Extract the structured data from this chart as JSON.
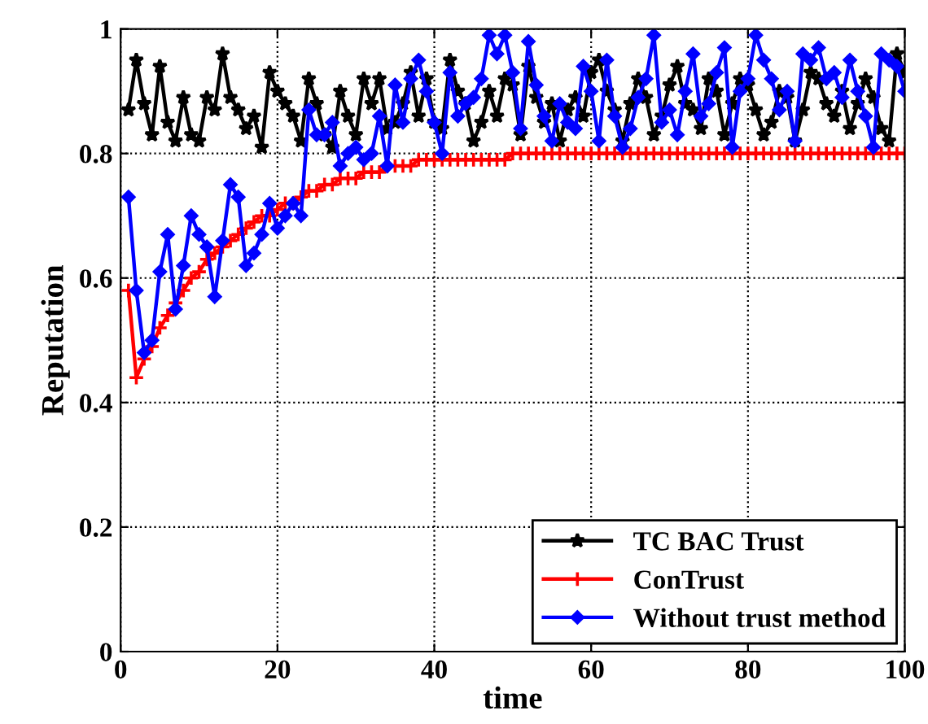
{
  "chart_data": {
    "type": "line",
    "xlabel": "time",
    "ylabel": "Reputation",
    "xlim": [
      0,
      100
    ],
    "ylim": [
      0,
      1
    ],
    "xticks": [
      0,
      20,
      40,
      60,
      80,
      100
    ],
    "yticks": [
      0,
      0.2,
      0.4,
      0.6,
      0.8,
      1
    ],
    "grid": true,
    "legend": "bottom right",
    "line_style": "solid",
    "x": [
      1,
      2,
      3,
      4,
      5,
      6,
      7,
      8,
      9,
      10,
      11,
      12,
      13,
      14,
      15,
      16,
      17,
      18,
      19,
      20,
      21,
      22,
      23,
      24,
      25,
      26,
      27,
      28,
      29,
      30,
      31,
      32,
      33,
      34,
      35,
      36,
      37,
      38,
      39,
      40,
      41,
      42,
      43,
      44,
      45,
      46,
      47,
      48,
      49,
      50,
      51,
      52,
      53,
      54,
      55,
      56,
      57,
      58,
      59,
      60,
      61,
      62,
      63,
      64,
      65,
      66,
      67,
      68,
      69,
      70,
      71,
      72,
      73,
      74,
      75,
      76,
      77,
      78,
      79,
      80,
      81,
      82,
      83,
      84,
      85,
      86,
      87,
      88,
      89,
      90,
      91,
      92,
      93,
      94,
      95,
      96,
      97,
      98,
      99,
      100
    ],
    "series": [
      {
        "name": "TC BAC Trust",
        "color": "#000000",
        "marker": "star",
        "values": [
          0.87,
          0.95,
          0.88,
          0.83,
          0.94,
          0.85,
          0.82,
          0.89,
          0.83,
          0.82,
          0.89,
          0.87,
          0.96,
          0.89,
          0.87,
          0.84,
          0.86,
          0.81,
          0.93,
          0.9,
          0.88,
          0.86,
          0.82,
          0.92,
          0.88,
          0.83,
          0.81,
          0.9,
          0.86,
          0.83,
          0.92,
          0.88,
          0.92,
          0.84,
          0.85,
          0.88,
          0.93,
          0.86,
          0.92,
          0.85,
          0.84,
          0.95,
          0.9,
          0.88,
          0.82,
          0.85,
          0.9,
          0.86,
          0.92,
          0.91,
          0.83,
          0.94,
          0.89,
          0.85,
          0.88,
          0.82,
          0.87,
          0.89,
          0.86,
          0.93,
          0.95,
          0.9,
          0.87,
          0.82,
          0.88,
          0.92,
          0.89,
          0.83,
          0.86,
          0.91,
          0.94,
          0.88,
          0.87,
          0.84,
          0.92,
          0.9,
          0.83,
          0.88,
          0.92,
          0.91,
          0.87,
          0.83,
          0.85,
          0.9,
          0.89,
          0.82,
          0.87,
          0.93,
          0.92,
          0.88,
          0.86,
          0.9,
          0.84,
          0.88,
          0.92,
          0.89,
          0.84,
          0.82,
          0.96,
          0.93
        ]
      },
      {
        "name": "ConTrust",
        "color": "#ff0000",
        "marker": "cross",
        "values": [
          0.58,
          0.44,
          0.47,
          0.49,
          0.52,
          0.54,
          0.56,
          0.58,
          0.6,
          0.61,
          0.63,
          0.64,
          0.65,
          0.66,
          0.67,
          0.68,
          0.69,
          0.7,
          0.7,
          0.71,
          0.72,
          0.72,
          0.73,
          0.74,
          0.74,
          0.75,
          0.75,
          0.76,
          0.76,
          0.76,
          0.77,
          0.77,
          0.77,
          0.78,
          0.78,
          0.78,
          0.78,
          0.79,
          0.79,
          0.79,
          0.79,
          0.79,
          0.79,
          0.79,
          0.79,
          0.79,
          0.79,
          0.79,
          0.79,
          0.8,
          0.8,
          0.8,
          0.8,
          0.8,
          0.8,
          0.8,
          0.8,
          0.8,
          0.8,
          0.8,
          0.8,
          0.8,
          0.8,
          0.8,
          0.8,
          0.8,
          0.8,
          0.8,
          0.8,
          0.8,
          0.8,
          0.8,
          0.8,
          0.8,
          0.8,
          0.8,
          0.8,
          0.8,
          0.8,
          0.8,
          0.8,
          0.8,
          0.8,
          0.8,
          0.8,
          0.8,
          0.8,
          0.8,
          0.8,
          0.8,
          0.8,
          0.8,
          0.8,
          0.8,
          0.8,
          0.8,
          0.8,
          0.8,
          0.8,
          0.8
        ]
      },
      {
        "name": "Without trust method",
        "color": "#0000ff",
        "marker": "diamond",
        "values": [
          0.73,
          0.58,
          0.48,
          0.5,
          0.61,
          0.67,
          0.55,
          0.62,
          0.7,
          0.67,
          0.65,
          0.57,
          0.66,
          0.75,
          0.73,
          0.62,
          0.64,
          0.67,
          0.72,
          0.68,
          0.7,
          0.72,
          0.7,
          0.87,
          0.83,
          0.83,
          0.85,
          0.78,
          0.8,
          0.81,
          0.79,
          0.8,
          0.86,
          0.78,
          0.91,
          0.85,
          0.92,
          0.95,
          0.9,
          0.85,
          0.8,
          0.93,
          0.86,
          0.88,
          0.89,
          0.92,
          0.99,
          0.96,
          0.99,
          0.93,
          0.84,
          0.98,
          0.91,
          0.86,
          0.82,
          0.88,
          0.85,
          0.84,
          0.94,
          0.9,
          0.82,
          0.95,
          0.86,
          0.81,
          0.84,
          0.89,
          0.92,
          0.99,
          0.85,
          0.87,
          0.83,
          0.9,
          0.96,
          0.86,
          0.88,
          0.93,
          0.97,
          0.81,
          0.9,
          0.92,
          0.99,
          0.95,
          0.92,
          0.87,
          0.9,
          0.82,
          0.96,
          0.95,
          0.97,
          0.92,
          0.93,
          0.89,
          0.95,
          0.9,
          0.86,
          0.81,
          0.96,
          0.95,
          0.94,
          0.9
        ]
      }
    ]
  }
}
